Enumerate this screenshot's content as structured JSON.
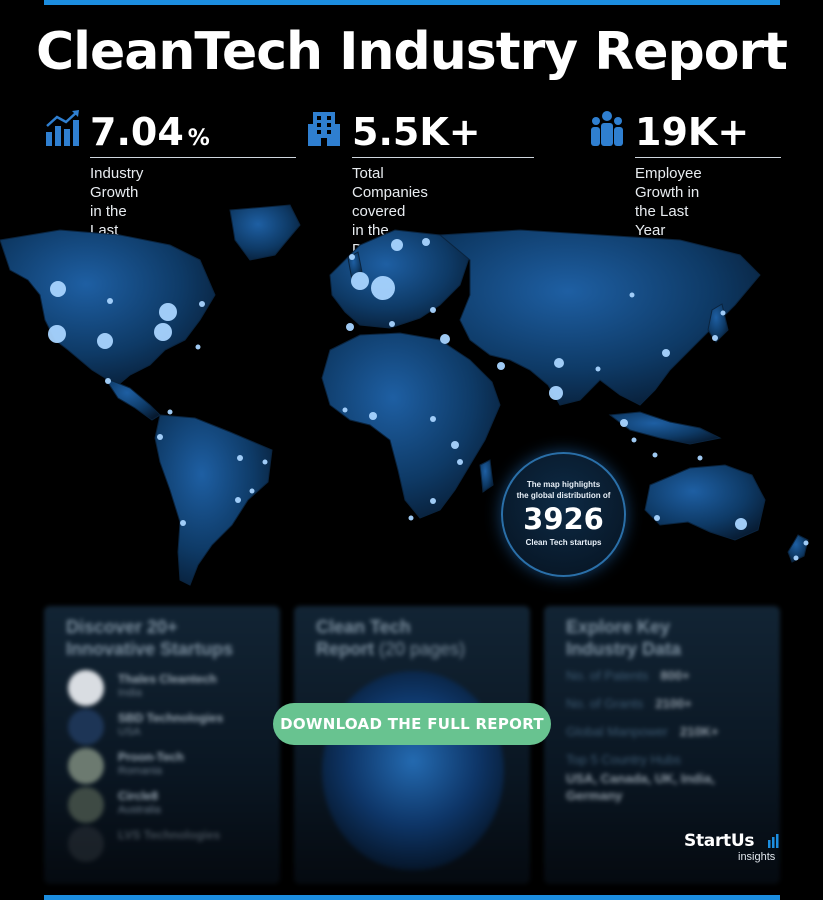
{
  "title": "CleanTech Industry Report",
  "stats": [
    {
      "icon": "growth-chart-icon",
      "value": "7.04",
      "unit": "%",
      "label_line1": "Industry Growth in the",
      "label_line2": "Last Year"
    },
    {
      "icon": "building-icon",
      "value": "5.5K+",
      "label_line1": "Total Companies covered",
      "label_line2": "in the Discovery Platform"
    },
    {
      "icon": "people-icon",
      "value": "19K+",
      "label_line1": "Employee Growth in",
      "label_line2": "the Last Year"
    }
  ],
  "map_badge": {
    "text_line1": "The map highlights",
    "text_line2": "the global distribution of",
    "number": "3926",
    "subtext": "Clean Tech startups"
  },
  "cards": {
    "startups": {
      "title_line1": "Discover 20+",
      "title_line2": "Innovative Startups",
      "companies": [
        {
          "name": "Thales Cleantech",
          "country": "India"
        },
        {
          "name": "SBD Technologies",
          "country": "USA"
        },
        {
          "name": "Proon-Tech",
          "country": "Romania"
        },
        {
          "name": "Circle8",
          "country": "Australia"
        },
        {
          "name": "LVS Technologies",
          "country": ""
        }
      ]
    },
    "report": {
      "title_line1": "Clean Tech",
      "title_line2_bold": "Report",
      "title_line2_thin": "(20 pages)"
    },
    "data": {
      "title_line1": "Explore Key",
      "title_line2": "Industry Data",
      "rows": [
        {
          "label": "No. of Patents",
          "value": "800+"
        },
        {
          "label": "No. of Grants",
          "value": "2100+"
        },
        {
          "label": "Global Manpower",
          "value": "210K+"
        }
      ],
      "hubs_label": "Top 5 Country Hubs",
      "hubs_value": "USA, Canada, UK, India, Germany"
    }
  },
  "download_label": "DOWNLOAD THE FULL REPORT",
  "brand": {
    "name": "StartUs",
    "sub": "insights"
  },
  "colors": {
    "accent": "#1c8ee0",
    "download": "#68c390",
    "map": "#0e3a66"
  }
}
